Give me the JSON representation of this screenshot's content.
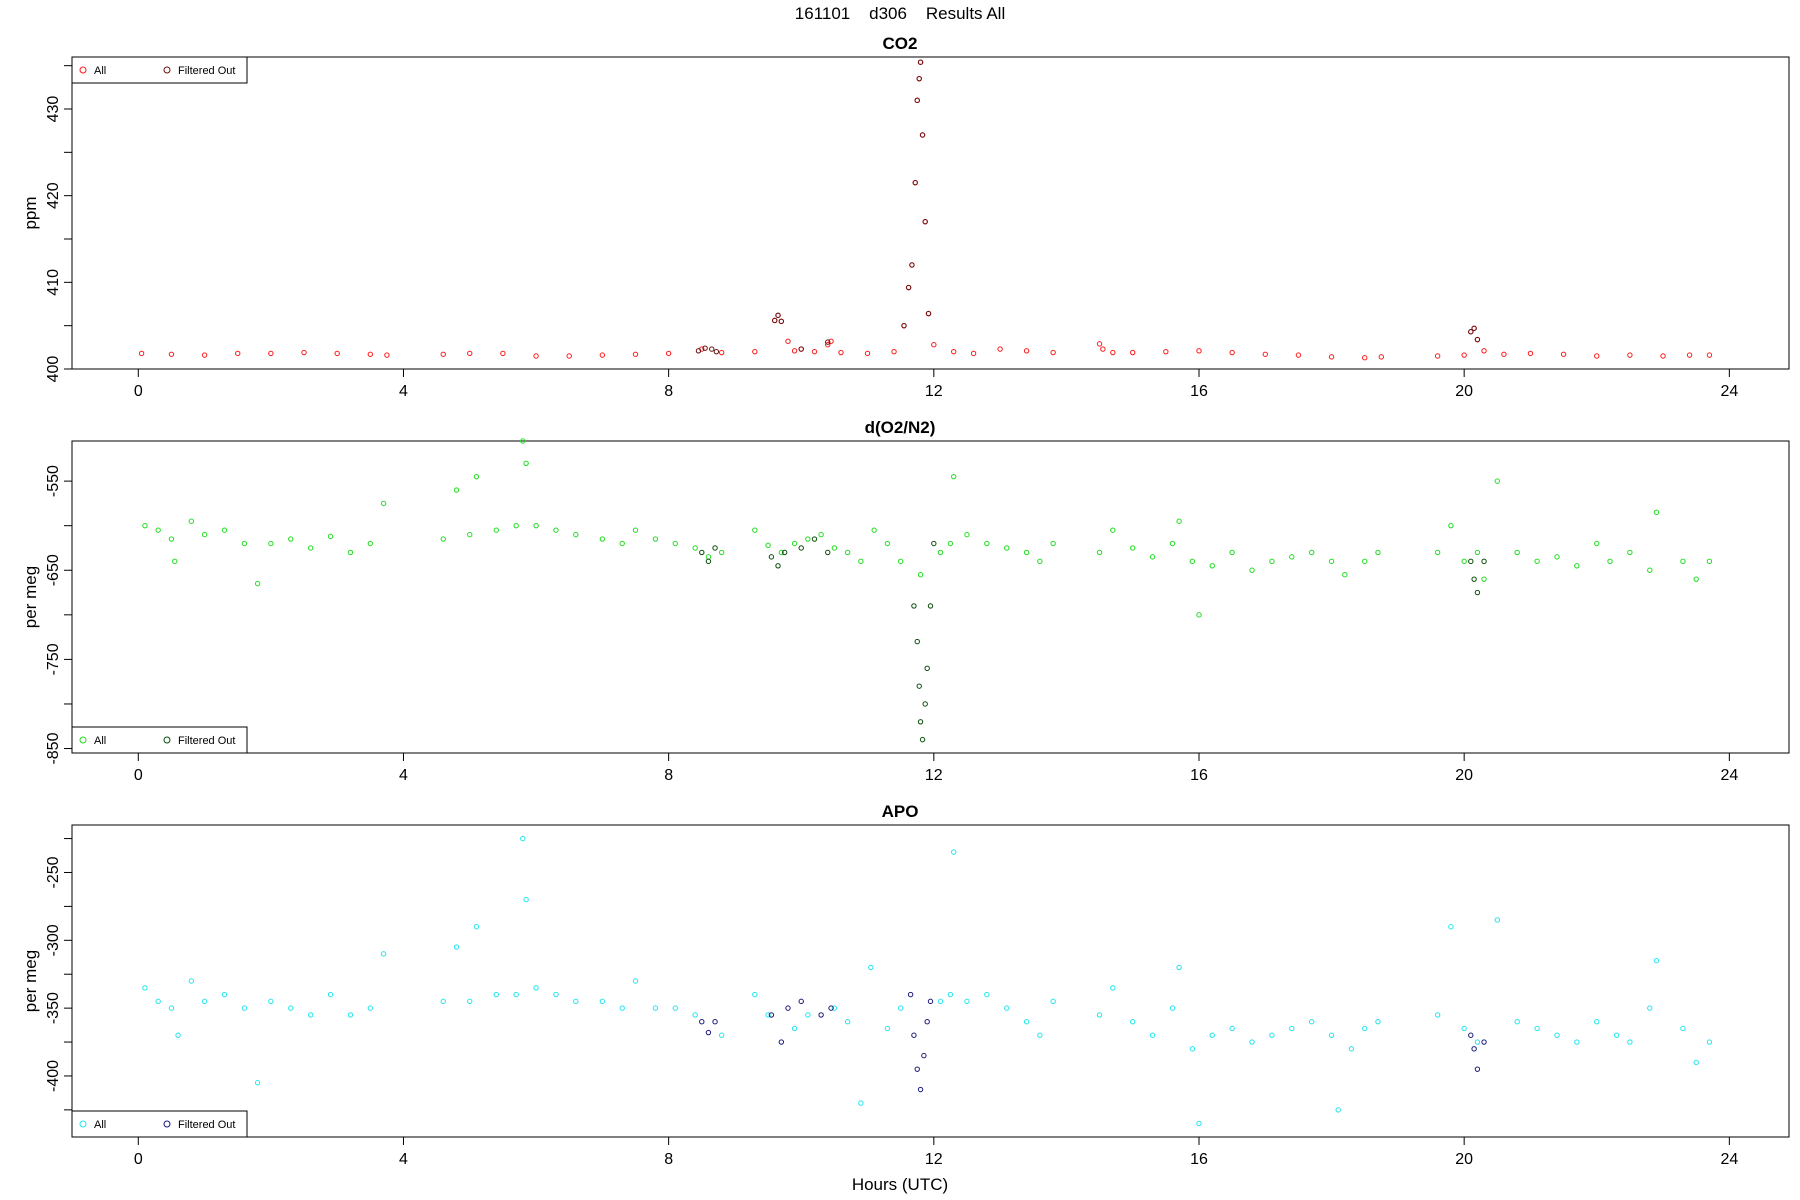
{
  "figure": {
    "suptitle": "161101    d306    Results All",
    "xlabel": "Hours (UTC)"
  },
  "chart_data": [
    {
      "type": "scatter",
      "title": "CO2",
      "xlabel": "Hours (UTC)",
      "ylabel": "ppm",
      "xlim": [
        -1.0,
        24.9
      ],
      "ylim": [
        400.0,
        436.0
      ],
      "xticks": [
        0,
        4,
        8,
        12,
        16,
        20,
        24
      ],
      "yticks": [
        400,
        410,
        420,
        430
      ],
      "legend": {
        "placement": "top-left",
        "entries": [
          "All",
          "Filtered Out"
        ]
      },
      "colors": {
        "all": "#ff1a1a",
        "filtered": "#6b1010"
      },
      "series": [
        {
          "name": "All",
          "x": [
            0.05,
            0.5,
            1.0,
            1.5,
            2.0,
            2.5,
            3.0,
            3.5,
            3.75,
            4.6,
            5.0,
            5.5,
            6.0,
            6.5,
            7.0,
            7.5,
            8.0,
            8.5,
            8.8,
            9.3,
            9.6,
            9.65,
            9.7,
            9.8,
            9.9,
            10.0,
            10.2,
            10.4,
            10.45,
            10.6,
            11.0,
            11.4,
            11.55,
            11.62,
            11.67,
            11.72,
            11.75,
            11.78,
            11.8,
            11.83,
            11.87,
            11.92,
            12.0,
            12.3,
            12.6,
            13.0,
            13.4,
            13.8,
            14.5,
            14.55,
            14.7,
            15.0,
            15.5,
            16.0,
            16.5,
            17.0,
            17.5,
            18.0,
            18.5,
            18.75,
            19.6,
            20.0,
            20.1,
            20.15,
            20.2,
            20.3,
            20.6,
            21.0,
            21.5,
            22.0,
            22.5,
            23.0,
            23.4,
            23.7
          ],
          "y": [
            401.8,
            401.7,
            401.6,
            401.8,
            401.8,
            401.9,
            401.8,
            401.7,
            401.6,
            401.7,
            401.8,
            401.8,
            401.5,
            401.5,
            401.6,
            401.7,
            401.8,
            402.3,
            401.9,
            402.0,
            405.6,
            406.2,
            405.5,
            403.2,
            402.1,
            402.3,
            402.0,
            402.8,
            403.2,
            401.9,
            401.8,
            402.0,
            405.0,
            409.4,
            412.0,
            421.5,
            431.0,
            433.5,
            435.4,
            427.0,
            417.0,
            406.4,
            402.8,
            402.0,
            401.8,
            402.3,
            402.1,
            401.9,
            402.9,
            402.3,
            401.9,
            401.9,
            402.0,
            402.1,
            401.9,
            401.7,
            401.6,
            401.4,
            401.3,
            401.4,
            401.5,
            401.6,
            404.3,
            404.7,
            403.4,
            402.1,
            401.7,
            401.8,
            401.7,
            401.5,
            401.6,
            401.5,
            401.6,
            401.6
          ]
        },
        {
          "name": "Filtered Out",
          "x": [
            8.45,
            8.55,
            8.65,
            8.72,
            9.6,
            9.65,
            9.7,
            10.0,
            10.4,
            11.55,
            11.62,
            11.67,
            11.72,
            11.75,
            11.78,
            11.8,
            11.83,
            11.87,
            11.92,
            20.1,
            20.15,
            20.2
          ],
          "y": [
            402.1,
            402.4,
            402.3,
            402.0,
            405.6,
            406.2,
            405.5,
            402.3,
            403.1,
            405.0,
            409.4,
            412.0,
            421.5,
            431.0,
            433.5,
            435.4,
            427.0,
            417.0,
            406.4,
            404.3,
            404.7,
            403.4
          ]
        }
      ]
    },
    {
      "type": "scatter",
      "title": "d(O2/N2)",
      "xlabel": "Hours (UTC)",
      "ylabel": "per meg",
      "xlim": [
        -1.0,
        24.9
      ],
      "ylim": [
        -855.0,
        -505.0
      ],
      "xticks": [
        0,
        4,
        8,
        12,
        16,
        20,
        24
      ],
      "yticks": [
        -850,
        -750,
        -650,
        -550
      ],
      "legend": {
        "placement": "bottom-left",
        "entries": [
          "All",
          "Filtered Out"
        ]
      },
      "colors": {
        "all": "#22dd22",
        "filtered": "#0a4d0a"
      },
      "series": [
        {
          "name": "All",
          "x": [
            0.1,
            0.3,
            0.5,
            0.55,
            0.8,
            1.0,
            1.3,
            1.6,
            1.8,
            2.0,
            2.3,
            2.6,
            2.9,
            3.2,
            3.5,
            3.7,
            4.6,
            4.8,
            5.0,
            5.1,
            5.4,
            5.7,
            5.8,
            5.85,
            6.0,
            6.3,
            6.6,
            7.0,
            7.3,
            7.5,
            7.8,
            8.1,
            8.4,
            8.6,
            8.8,
            9.3,
            9.5,
            9.7,
            9.9,
            10.1,
            10.3,
            10.5,
            10.7,
            10.9,
            11.1,
            11.3,
            11.5,
            11.8,
            12.1,
            12.25,
            12.3,
            12.5,
            12.8,
            13.1,
            13.4,
            13.6,
            13.8,
            14.5,
            14.7,
            15.0,
            15.3,
            15.6,
            15.7,
            15.9,
            16.0,
            16.2,
            16.5,
            16.8,
            17.1,
            17.4,
            17.7,
            18.0,
            18.2,
            18.5,
            18.7,
            19.6,
            19.8,
            20.0,
            20.2,
            20.3,
            20.5,
            20.8,
            21.1,
            21.4,
            21.7,
            22.0,
            22.2,
            22.5,
            22.8,
            22.9,
            23.3,
            23.5,
            23.7
          ],
          "y": [
            -600,
            -605,
            -615,
            -640,
            -595,
            -610,
            -605,
            -620,
            -665,
            -620,
            -615,
            -625,
            -612,
            -630,
            -620,
            -575,
            -615,
            -560,
            -610,
            -545,
            -605,
            -600,
            -505,
            -530,
            -600,
            -605,
            -610,
            -615,
            -620,
            -605,
            -615,
            -620,
            -625,
            -635,
            -630,
            -605,
            -622,
            -630,
            -620,
            -615,
            -610,
            -625,
            -630,
            -640,
            -605,
            -620,
            -640,
            -655,
            -630,
            -620,
            -545,
            -610,
            -620,
            -625,
            -630,
            -640,
            -620,
            -630,
            -605,
            -625,
            -635,
            -620,
            -595,
            -640,
            -700,
            -645,
            -630,
            -650,
            -640,
            -635,
            -630,
            -640,
            -655,
            -640,
            -630,
            -630,
            -600,
            -640,
            -630,
            -660,
            -550,
            -630,
            -640,
            -635,
            -645,
            -620,
            -640,
            -630,
            -650,
            -585,
            -640,
            -660,
            -640
          ]
        },
        {
          "name": "Filtered Out",
          "x": [
            8.5,
            8.6,
            8.7,
            9.55,
            9.65,
            9.75,
            10.0,
            10.2,
            10.4,
            11.7,
            11.75,
            11.78,
            11.8,
            11.83,
            11.87,
            11.9,
            11.95,
            12.0,
            20.1,
            20.15,
            20.2,
            20.3
          ],
          "y": [
            -630,
            -640,
            -625,
            -635,
            -645,
            -630,
            -625,
            -615,
            -630,
            -690,
            -730,
            -780,
            -820,
            -840,
            -800,
            -760,
            -690,
            -620,
            -640,
            -660,
            -675,
            -640
          ]
        }
      ]
    },
    {
      "type": "scatter",
      "title": "APO",
      "xlabel": "Hours (UTC)",
      "ylabel": "per meg",
      "xlim": [
        -1.0,
        24.9
      ],
      "ylim": [
        -445.0,
        -215.0
      ],
      "xticks": [
        0,
        4,
        8,
        12,
        16,
        20,
        24
      ],
      "yticks": [
        -400,
        -350,
        -300,
        -250
      ],
      "legend": {
        "placement": "bottom-left",
        "entries": [
          "All",
          "Filtered Out"
        ]
      },
      "colors": {
        "all": "#22e5ee",
        "filtered": "#1a1a7a"
      },
      "series": [
        {
          "name": "All",
          "x": [
            0.1,
            0.3,
            0.5,
            0.6,
            0.8,
            1.0,
            1.3,
            1.6,
            1.8,
            2.0,
            2.3,
            2.6,
            2.9,
            3.2,
            3.5,
            3.7,
            4.6,
            4.8,
            5.0,
            5.1,
            5.4,
            5.7,
            5.8,
            5.85,
            6.0,
            6.3,
            6.6,
            7.0,
            7.3,
            7.5,
            7.8,
            8.1,
            8.4,
            8.8,
            9.3,
            9.5,
            9.9,
            10.1,
            10.5,
            10.7,
            10.9,
            11.05,
            11.3,
            11.5,
            12.1,
            12.25,
            12.3,
            12.5,
            12.8,
            13.1,
            13.4,
            13.6,
            13.8,
            14.5,
            14.7,
            15.0,
            15.3,
            15.6,
            15.7,
            15.9,
            16.0,
            16.2,
            16.5,
            16.8,
            17.1,
            17.4,
            17.7,
            18.0,
            18.1,
            18.3,
            18.5,
            18.7,
            19.6,
            19.8,
            20.0,
            20.2,
            20.5,
            20.8,
            21.1,
            21.4,
            21.7,
            22.0,
            22.3,
            22.5,
            22.8,
            22.9,
            23.3,
            23.5,
            23.7
          ],
          "y": [
            -335,
            -345,
            -350,
            -370,
            -330,
            -345,
            -340,
            -350,
            -405,
            -345,
            -350,
            -355,
            -340,
            -355,
            -350,
            -310,
            -345,
            -305,
            -345,
            -290,
            -340,
            -340,
            -225,
            -270,
            -335,
            -340,
            -345,
            -345,
            -350,
            -330,
            -350,
            -350,
            -355,
            -370,
            -340,
            -355,
            -365,
            -355,
            -350,
            -360,
            -420,
            -320,
            -365,
            -350,
            -345,
            -340,
            -235,
            -345,
            -340,
            -350,
            -360,
            -370,
            -345,
            -355,
            -335,
            -360,
            -370,
            -350,
            -320,
            -380,
            -435,
            -370,
            -365,
            -375,
            -370,
            -365,
            -360,
            -370,
            -425,
            -380,
            -365,
            -360,
            -355,
            -290,
            -365,
            -375,
            -285,
            -360,
            -365,
            -370,
            -375,
            -360,
            -370,
            -375,
            -350,
            -315,
            -365,
            -390,
            -375
          ]
        },
        {
          "name": "Filtered Out",
          "x": [
            8.5,
            8.6,
            8.7,
            9.55,
            9.7,
            9.8,
            10.0,
            10.3,
            10.45,
            11.65,
            11.7,
            11.75,
            11.8,
            11.85,
            11.9,
            11.95,
            20.1,
            20.15,
            20.2,
            20.3
          ],
          "y": [
            -360,
            -368,
            -360,
            -355,
            -375,
            -350,
            -345,
            -355,
            -350,
            -340,
            -370,
            -395,
            -410,
            -385,
            -360,
            -345,
            -370,
            -380,
            -395,
            -375
          ]
        }
      ]
    }
  ]
}
